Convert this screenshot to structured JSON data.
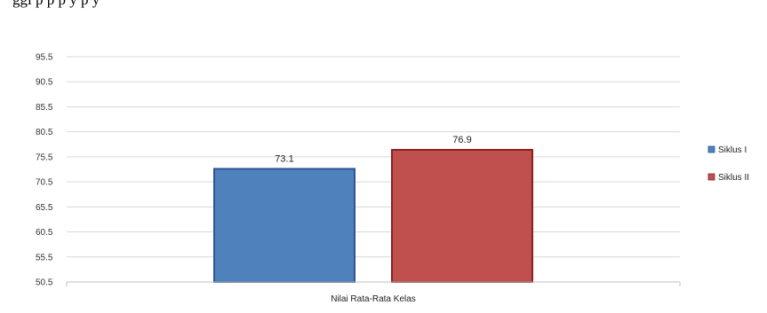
{
  "page": {
    "top_text": "ggi                                  p  p     p  y        p  y"
  },
  "chart_data": {
    "type": "bar",
    "categories": [
      "Nilai Rata-Rata Kelas"
    ],
    "series": [
      {
        "name": "Siklus I",
        "values": [
          73.1
        ],
        "color": "#4F81BD",
        "border": "#2F5597"
      },
      {
        "name": "Siklus II",
        "values": [
          76.9
        ],
        "color": "#C0504D",
        "border": "#8B2020"
      }
    ],
    "data_labels": [
      "73.1",
      "76.9"
    ],
    "y_ticks": [
      "50.5",
      "55.5",
      "60.5",
      "65.5",
      "70.5",
      "75.5",
      "80.5",
      "85.5",
      "90.5",
      "95.5"
    ],
    "ylim": [
      50.5,
      95.5
    ],
    "grid": true,
    "legend": "right",
    "xlabel": "",
    "ylabel": "",
    "title": ""
  }
}
